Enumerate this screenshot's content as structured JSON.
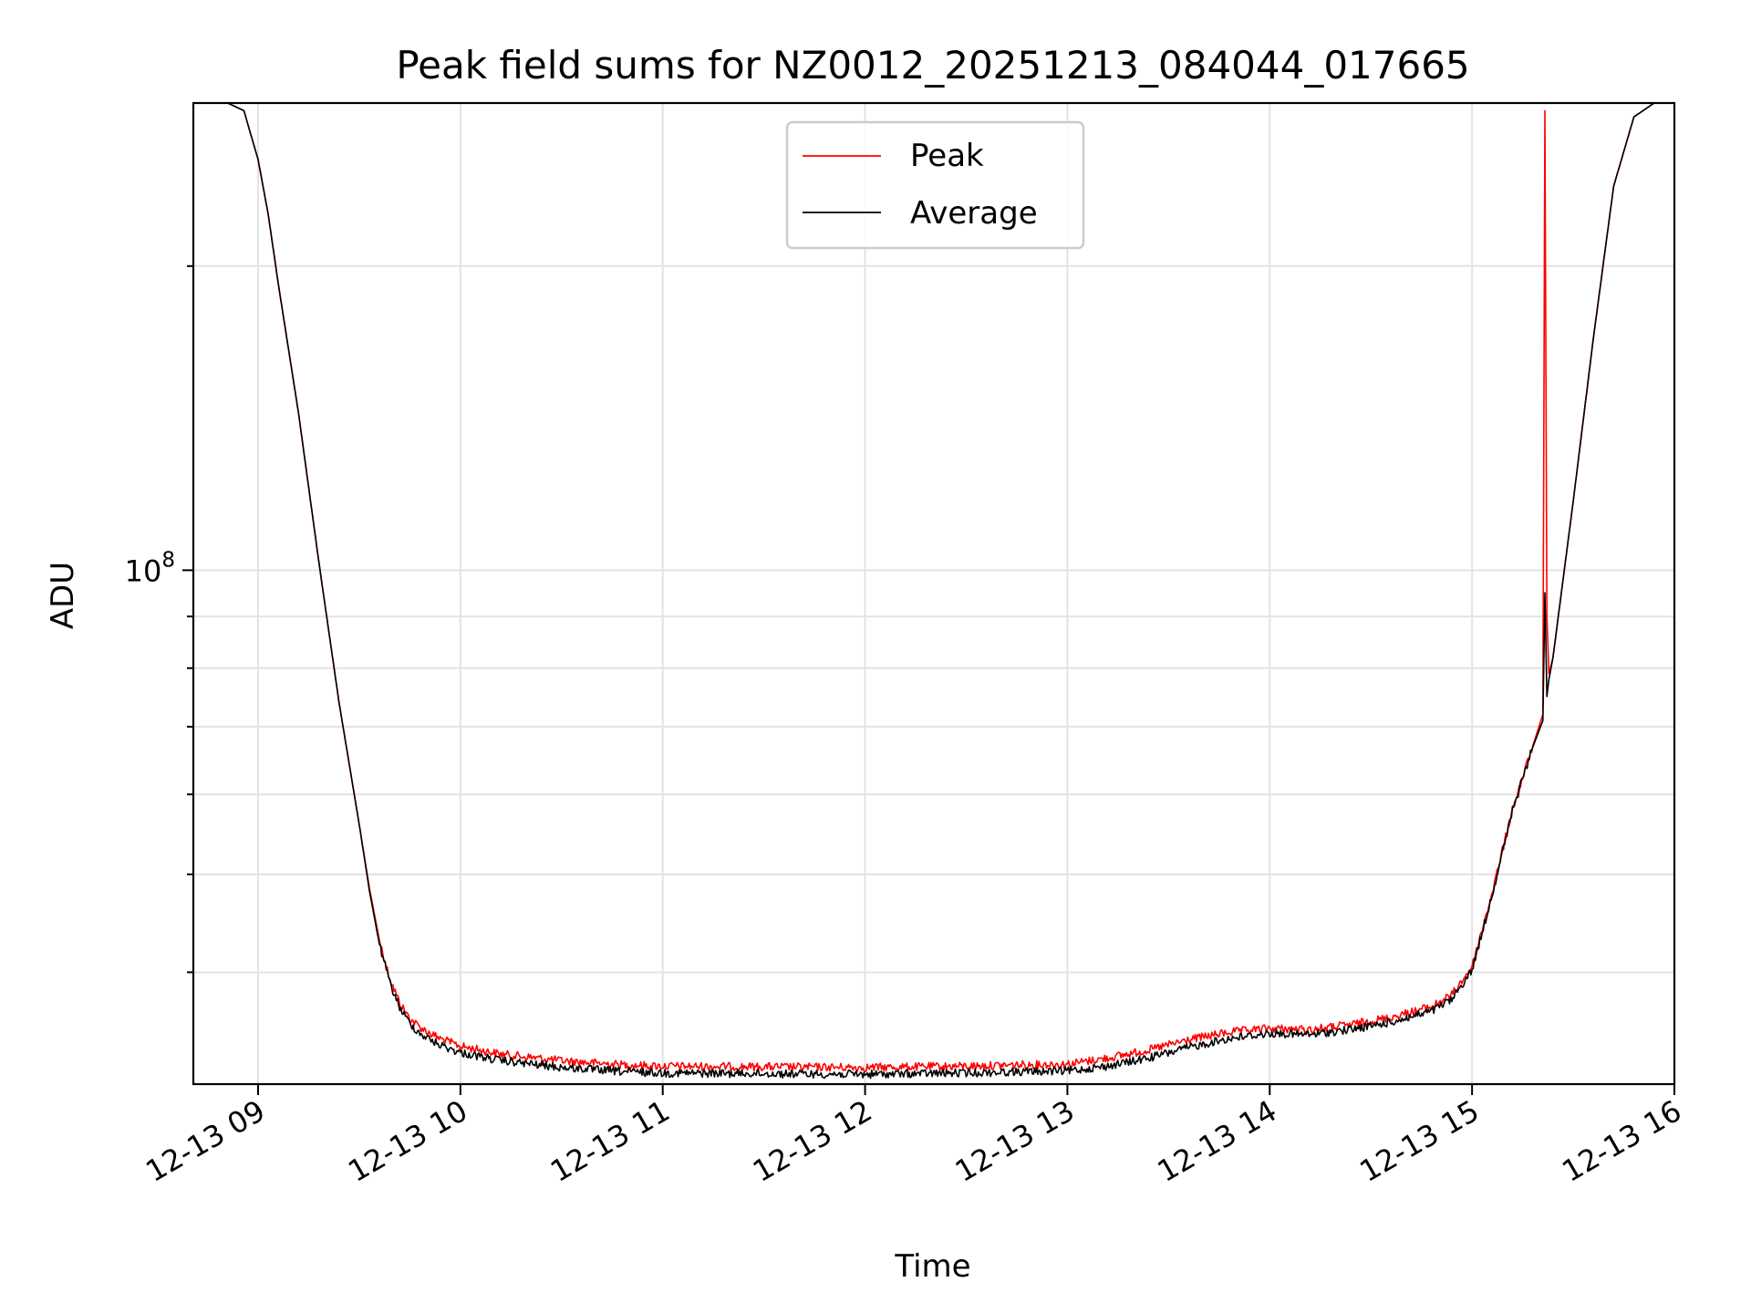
{
  "chart_data": {
    "type": "line",
    "title": "Peak field sums for NZ0012_20251213_084044_017665",
    "xlabel": "Time",
    "ylabel": "ADU",
    "yscale": "log",
    "grid": true,
    "legend_position": "upper-center",
    "xlim": [
      8.68,
      16.0
    ],
    "ylim": [
      31000000,
      290000000
    ],
    "x_ticks": [
      {
        "value": 9,
        "label": "12-13 09"
      },
      {
        "value": 10,
        "label": "12-13 10"
      },
      {
        "value": 11,
        "label": "12-13 11"
      },
      {
        "value": 12,
        "label": "12-13 12"
      },
      {
        "value": 13,
        "label": "12-13 13"
      },
      {
        "value": 14,
        "label": "12-13 14"
      },
      {
        "value": 15,
        "label": "12-13 15"
      },
      {
        "value": 16,
        "label": "12-13 16"
      }
    ],
    "y_major_ticks": [
      {
        "value": 100000000,
        "label_base": "10",
        "label_exp": "8"
      }
    ],
    "y_minor_ticks": [
      40000000,
      50000000,
      60000000,
      70000000,
      80000000,
      90000000,
      200000000
    ],
    "x_unit_note": "hours on 2025-12-13",
    "series": [
      {
        "name": "Peak",
        "color": "#ff0000",
        "x": [
          8.68,
          8.85,
          8.93,
          9.0,
          9.05,
          9.1,
          9.2,
          9.3,
          9.4,
          9.5,
          9.55,
          9.6,
          9.65,
          9.7,
          9.75,
          9.8,
          9.85,
          9.9,
          10.0,
          10.2,
          10.5,
          10.8,
          11.0,
          11.5,
          12.0,
          12.5,
          12.8,
          13.0,
          13.2,
          13.4,
          13.6,
          13.8,
          14.0,
          14.2,
          14.4,
          14.6,
          14.8,
          14.9,
          15.0,
          15.1,
          15.2,
          15.3,
          15.35,
          15.36,
          15.37,
          15.38,
          15.4,
          15.5,
          15.6,
          15.7,
          15.8,
          15.9,
          16.0
        ],
        "y": [
          290000000,
          290000000,
          285000000,
          255000000,
          225000000,
          192000000,
          143000000,
          102000000,
          74000000,
          56000000,
          48500000,
          43000000,
          39500000,
          37300000,
          36000000,
          35300000,
          34800000,
          34400000,
          33800000,
          33200000,
          32700000,
          32400000,
          32300000,
          32250000,
          32200000,
          32300000,
          32400000,
          32450000,
          32900000,
          33500000,
          34300000,
          34900000,
          35200000,
          35100000,
          35500000,
          36100000,
          37000000,
          38000000,
          40500000,
          48000000,
          58000000,
          67000000,
          72000000,
          285000000,
          90000000,
          79000000,
          82000000,
          117000000,
          170000000,
          240000000,
          281000000,
          290000000,
          290000000
        ]
      },
      {
        "name": "Average",
        "color": "#000000",
        "x": [
          8.68,
          8.85,
          8.93,
          9.0,
          9.05,
          9.1,
          9.2,
          9.3,
          9.4,
          9.5,
          9.55,
          9.6,
          9.65,
          9.7,
          9.75,
          9.8,
          9.85,
          9.9,
          10.0,
          10.2,
          10.5,
          10.8,
          11.0,
          11.5,
          12.0,
          12.5,
          12.8,
          13.0,
          13.2,
          13.4,
          13.6,
          13.8,
          14.0,
          14.2,
          14.4,
          14.6,
          14.8,
          14.9,
          15.0,
          15.1,
          15.2,
          15.3,
          15.35,
          15.36,
          15.37,
          15.38,
          15.4,
          15.5,
          15.6,
          15.7,
          15.8,
          15.9,
          16.0
        ],
        "y": [
          290000000,
          290000000,
          285000000,
          255000000,
          225000000,
          192000000,
          143000000,
          102000000,
          74000000,
          56000000,
          48200000,
          42600000,
          39100000,
          36900000,
          35600000,
          34800000,
          34300000,
          33900000,
          33300000,
          32700000,
          32200000,
          31900000,
          31800000,
          31750000,
          31700000,
          31800000,
          31900000,
          31950000,
          32300000,
          32900000,
          33700000,
          34400000,
          34800000,
          34700000,
          35100000,
          35700000,
          36600000,
          37600000,
          40200000,
          47800000,
          57800000,
          66800000,
          71000000,
          95000000,
          75000000,
          78000000,
          82000000,
          117000000,
          170000000,
          240000000,
          281000000,
          290000000,
          290000000
        ]
      }
    ]
  }
}
